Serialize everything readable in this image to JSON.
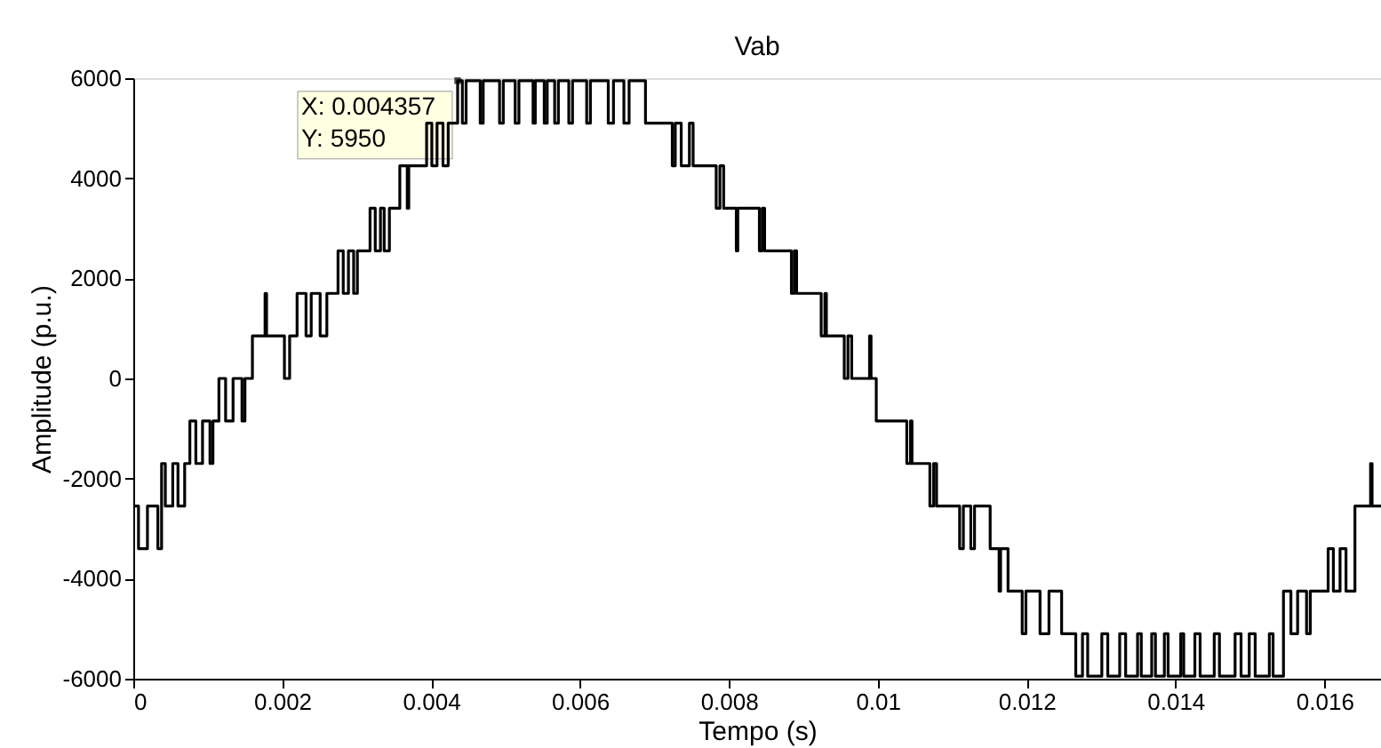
{
  "chart_data": {
    "type": "step",
    "title": "Vab",
    "xlabel": "Tempo (s)",
    "ylabel": "Amplitude (p.u.)",
    "x": [
      0,
      7e-05,
      0.00019,
      0.00033,
      0.00038,
      0.00043,
      0.00053,
      0.0006,
      0.00069,
      0.00076,
      0.00084,
      0.00093,
      0.00103,
      0.00107,
      0.00115,
      0.00124,
      0.00134,
      0.00146,
      0.0015,
      0.0016,
      0.00177,
      0.00179,
      0.00203,
      0.0021,
      0.0022,
      0.00232,
      0.00239,
      0.00251,
      0.0026,
      0.00275,
      0.00282,
      0.00289,
      0.00296,
      0.00301,
      0.00318,
      0.00325,
      0.00332,
      0.00337,
      0.00344,
      0.00358,
      0.00368,
      0.0037,
      0.00394,
      0.00401,
      0.00408,
      0.00416,
      0.00423,
      0.004357,
      0.00442,
      0.00447,
      0.00466,
      0.0047,
      0.00492,
      0.00497,
      0.00513,
      0.00518,
      0.00537,
      0.0054,
      0.00552,
      0.00556,
      0.00566,
      0.00571,
      0.00585,
      0.0059,
      0.00609,
      0.00614,
      0.00638,
      0.00645,
      0.00659,
      0.00666,
      0.00688,
      0.00724,
      0.00728,
      0.00736,
      0.00747,
      0.00752,
      0.00783,
      0.00788,
      0.00793,
      0.0081,
      0.00812,
      0.00841,
      0.00845,
      0.00848,
      0.00884,
      0.00888,
      0.00891,
      0.00924,
      0.00929,
      0.00931,
      0.00955,
      0.0096,
      0.00965,
      0.00989,
      0.00991,
      0.00998,
      0.01039,
      0.01044,
      0.01046,
      0.0107,
      0.01075,
      0.01079,
      0.0111,
      0.01115,
      0.01125,
      0.0113,
      0.01151,
      0.01163,
      0.01165,
      0.01175,
      0.01194,
      0.01199,
      0.01218,
      0.0123,
      0.01247,
      0.01266,
      0.01275,
      0.01282,
      0.01301,
      0.01309,
      0.01325,
      0.01333,
      0.01349,
      0.01354,
      0.01368,
      0.01373,
      0.01385,
      0.0139,
      0.01407,
      0.01411,
      0.01426,
      0.01433,
      0.01452,
      0.01459,
      0.0148,
      0.01488,
      0.01499,
      0.01507,
      0.01526,
      0.01531,
      0.01545,
      0.01555,
      0.01564,
      0.01576,
      0.01581,
      0.01605,
      0.01612,
      0.01621,
      0.01629,
      0.01641,
      0.01662,
      0.01664,
      0.01676
    ],
    "series": [
      {
        "color": "#000000",
        "values": [
          -2550,
          -3400,
          -2550,
          -3400,
          -1700,
          -2550,
          -1700,
          -2550,
          -1700,
          -850,
          -1700,
          -850,
          -1700,
          -850,
          0,
          -850,
          0,
          -850,
          0,
          850,
          1700,
          850,
          0,
          850,
          1700,
          850,
          1700,
          850,
          1700,
          2550,
          1700,
          2550,
          1700,
          2550,
          3400,
          2550,
          3400,
          2550,
          3400,
          4250,
          3400,
          4250,
          5100,
          4250,
          5100,
          4250,
          5100,
          5950,
          5100,
          5950,
          5100,
          5950,
          5100,
          5950,
          5100,
          5950,
          5100,
          5950,
          5100,
          5950,
          5100,
          5950,
          5100,
          5950,
          5100,
          5950,
          5100,
          5950,
          5100,
          5950,
          5100,
          4250,
          5100,
          4250,
          5100,
          4250,
          3400,
          4250,
          3400,
          2550,
          3400,
          2550,
          3400,
          2550,
          1700,
          2550,
          1700,
          850,
          1700,
          850,
          0,
          850,
          0,
          850,
          0,
          -850,
          -1700,
          -850,
          -1700,
          -2550,
          -1700,
          -2550,
          -3400,
          -2550,
          -3400,
          -2550,
          -3400,
          -4250,
          -3400,
          -4250,
          -5100,
          -4250,
          -5100,
          -4250,
          -5100,
          -5950,
          -5100,
          -5950,
          -5100,
          -5950,
          -5100,
          -5950,
          -5100,
          -5950,
          -5100,
          -5950,
          -5100,
          -5950,
          -5100,
          -5950,
          -5100,
          -5950,
          -5100,
          -5950,
          -5100,
          -5950,
          -5100,
          -5950,
          -5100,
          -5950,
          -4250,
          -5100,
          -4250,
          -5100,
          -4250,
          -3400,
          -4250,
          -3400,
          -4250,
          -2550,
          -1700,
          -2550,
          -2550
        ]
      }
    ],
    "xlim": [
      0,
      0.01676
    ],
    "xticks": [
      0,
      0.002,
      0.004,
      0.006,
      0.008,
      0.01,
      0.012,
      0.014,
      0.016
    ],
    "ylim": [
      -6000,
      6000
    ],
    "yticks": [
      -6000,
      -4000,
      -2000,
      0,
      2000,
      4000,
      6000
    ],
    "grid": false,
    "marker": "none",
    "line_style": "solid",
    "annotations": [
      {
        "text": "X: 0.004357\nY: 5950",
        "x": 0.004357,
        "y": 5950
      }
    ]
  }
}
